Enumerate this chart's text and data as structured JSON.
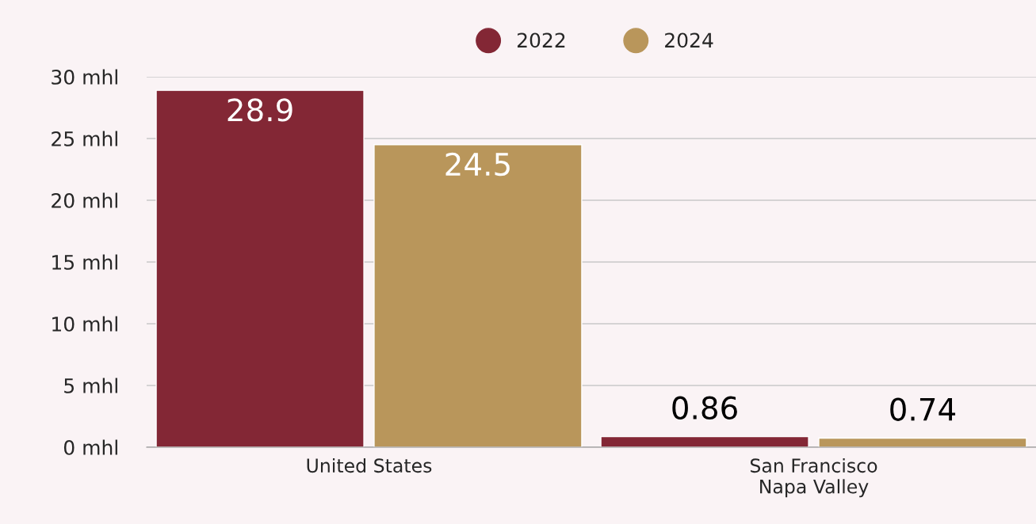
{
  "chart_data": {
    "type": "bar",
    "categories": [
      "United States",
      "San Francisco\nNapa Valley"
    ],
    "series": [
      {
        "name": "2022",
        "color": "#832735",
        "values": [
          28.9,
          0.86
        ]
      },
      {
        "name": "2024",
        "color": "#b9965b",
        "values": [
          24.5,
          0.74
        ]
      }
    ],
    "ylim": [
      0,
      30
    ],
    "yticks": [
      {
        "value": 0,
        "label": "0 mhl"
      },
      {
        "value": 5,
        "label": "5 mhl"
      },
      {
        "value": 10,
        "label": "10 mhl"
      },
      {
        "value": 15,
        "label": "15 mhl"
      },
      {
        "value": 20,
        "label": "20 mhl"
      },
      {
        "value": 25,
        "label": "25 mhl"
      },
      {
        "value": 30,
        "label": "30 mhl"
      }
    ],
    "grid": "y",
    "legend": "top",
    "data_labels": true
  }
}
